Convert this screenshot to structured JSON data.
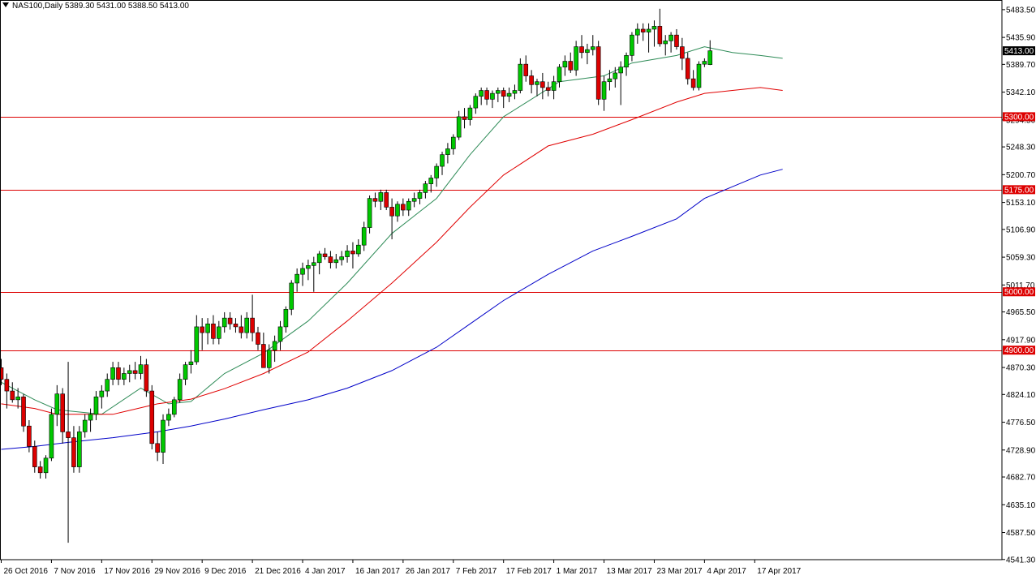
{
  "header": {
    "symbol": "NAS100,Daily",
    "ohlc": "5389.30 5431.00 5388.50 5413.00"
  },
  "colors": {
    "background": "#ffffff",
    "axis": "#000000",
    "bull_body": "#00c800",
    "bear_body": "#dc0000",
    "wick": "#000000",
    "ma_short": "#2e8b57",
    "ma_mid": "#e00000",
    "ma_long": "#0000c8",
    "horizontal_line": "#dd0000",
    "price_tag_bg": "#000000",
    "price_tag_text": "#ffffff",
    "level_tag_bg": "#dd0000"
  },
  "chart_data": {
    "type": "candlestick",
    "ylim": [
      4541.0,
      5500.0
    ],
    "y_ticks": [
      "5483.50",
      "5435.90",
      "5389.70",
      "5342.10",
      "5294.50",
      "5248.30",
      "5200.70",
      "5153.10",
      "5106.90",
      "5059.30",
      "5011.70",
      "4965.50",
      "4917.90",
      "4870.30",
      "4824.10",
      "4776.50",
      "4728.90",
      "4682.70",
      "4635.10",
      "4587.50",
      "4541.30"
    ],
    "x_ticks": [
      {
        "index": 0,
        "label": "26 Oct 2016"
      },
      {
        "index": 9,
        "label": "7 Nov 2016"
      },
      {
        "index": 18,
        "label": "17 Nov 2016"
      },
      {
        "index": 27,
        "label": "29 Nov 2016"
      },
      {
        "index": 36,
        "label": "9 Dec 2016"
      },
      {
        "index": 45,
        "label": "21 Dec 2016"
      },
      {
        "index": 54,
        "label": "4 Jan 2017"
      },
      {
        "index": 63,
        "label": "16 Jan 2017"
      },
      {
        "index": 72,
        "label": "26 Jan 2017"
      },
      {
        "index": 81,
        "label": "7 Feb 2017"
      },
      {
        "index": 90,
        "label": "17 Feb 2017"
      },
      {
        "index": 99,
        "label": "1 Mar 2017"
      },
      {
        "index": 108,
        "label": "13 Mar 2017"
      },
      {
        "index": 117,
        "label": "23 Mar 2017"
      },
      {
        "index": 126,
        "label": "4 Apr 2017"
      },
      {
        "index": 135,
        "label": "17 Apr 2017"
      }
    ],
    "current_price": {
      "value": 5413.0,
      "label": "5413.00"
    },
    "horizontal_lines": [
      {
        "value": 5300.0,
        "label": "5300.00"
      },
      {
        "value": 5175.0,
        "label": "5175.00"
      },
      {
        "value": 5000.0,
        "label": "5000.00"
      },
      {
        "value": 4900.0,
        "label": "4900.00"
      }
    ],
    "candles": [
      [
        4870,
        4885,
        4840,
        4850
      ],
      [
        4850,
        4860,
        4800,
        4830
      ],
      [
        4830,
        4845,
        4810,
        4815
      ],
      [
        4815,
        4835,
        4800,
        4820
      ],
      [
        4820,
        4825,
        4760,
        4770
      ],
      [
        4770,
        4780,
        4725,
        4735
      ],
      [
        4735,
        4745,
        4690,
        4700
      ],
      [
        4700,
        4710,
        4680,
        4690
      ],
      [
        4690,
        4720,
        4680,
        4715
      ],
      [
        4715,
        4800,
        4710,
        4790
      ],
      [
        4790,
        4840,
        4770,
        4825
      ],
      [
        4825,
        4835,
        4740,
        4760
      ],
      [
        4760,
        4880,
        4570,
        4750
      ],
      [
        4750,
        4770,
        4690,
        4700
      ],
      [
        4700,
        4770,
        4690,
        4760
      ],
      [
        4760,
        4790,
        4750,
        4780
      ],
      [
        4780,
        4800,
        4760,
        4790
      ],
      [
        4790,
        4830,
        4780,
        4820
      ],
      [
        4820,
        4840,
        4800,
        4830
      ],
      [
        4830,
        4860,
        4820,
        4850
      ],
      [
        4850,
        4880,
        4840,
        4870
      ],
      [
        4870,
        4880,
        4840,
        4850
      ],
      [
        4850,
        4870,
        4840,
        4860
      ],
      [
        4860,
        4875,
        4845,
        4865
      ],
      [
        4865,
        4880,
        4850,
        4860
      ],
      [
        4860,
        4890,
        4850,
        4875
      ],
      [
        4875,
        4885,
        4820,
        4830
      ],
      [
        4830,
        4840,
        4730,
        4740
      ],
      [
        4740,
        4760,
        4710,
        4725
      ],
      [
        4725,
        4790,
        4705,
        4780
      ],
      [
        4780,
        4800,
        4770,
        4790
      ],
      [
        4790,
        4820,
        4785,
        4815
      ],
      [
        4815,
        4860,
        4810,
        4850
      ],
      [
        4850,
        4880,
        4840,
        4875
      ],
      [
        4875,
        4900,
        4860,
        4880
      ],
      [
        4880,
        4960,
        4875,
        4940
      ],
      [
        4940,
        4955,
        4900,
        4930
      ],
      [
        4930,
        4955,
        4910,
        4945
      ],
      [
        4945,
        4960,
        4910,
        4920
      ],
      [
        4920,
        4950,
        4910,
        4940
      ],
      [
        4940,
        4965,
        4930,
        4955
      ],
      [
        4955,
        4965,
        4935,
        4945
      ],
      [
        4945,
        4955,
        4930,
        4940
      ],
      [
        4940,
        4960,
        4920,
        4930
      ],
      [
        4930,
        4965,
        4920,
        4955
      ],
      [
        4955,
        4995,
        4915,
        4930
      ],
      [
        4930,
        4940,
        4900,
        4910
      ],
      [
        4910,
        4930,
        4870,
        4870
      ],
      [
        4870,
        4910,
        4860,
        4900
      ],
      [
        4900,
        4925,
        4880,
        4915
      ],
      [
        4915,
        4950,
        4900,
        4940
      ],
      [
        4940,
        4975,
        4930,
        4970
      ],
      [
        4970,
        5020,
        4960,
        5015
      ],
      [
        5015,
        5040,
        5000,
        5030
      ],
      [
        5030,
        5050,
        5010,
        5040
      ],
      [
        5040,
        5055,
        5020,
        5045
      ],
      [
        5045,
        5060,
        5000,
        5050
      ],
      [
        5050,
        5070,
        5030,
        5065
      ],
      [
        5065,
        5075,
        5055,
        5060
      ],
      [
        5060,
        5070,
        5040,
        5050
      ],
      [
        5050,
        5065,
        5040,
        5055
      ],
      [
        5055,
        5070,
        5045,
        5060
      ],
      [
        5060,
        5080,
        5050,
        5070
      ],
      [
        5070,
        5085,
        5040,
        5065
      ],
      [
        5065,
        5090,
        5060,
        5080
      ],
      [
        5080,
        5120,
        5070,
        5110
      ],
      [
        5110,
        5165,
        5100,
        5160
      ],
      [
        5160,
        5170,
        5145,
        5155
      ],
      [
        5155,
        5175,
        5140,
        5170
      ],
      [
        5170,
        5175,
        5140,
        5145
      ],
      [
        5145,
        5160,
        5090,
        5130
      ],
      [
        5130,
        5155,
        5120,
        5150
      ],
      [
        5150,
        5160,
        5130,
        5140
      ],
      [
        5140,
        5160,
        5130,
        5155
      ],
      [
        5155,
        5170,
        5145,
        5160
      ],
      [
        5160,
        5175,
        5150,
        5170
      ],
      [
        5170,
        5190,
        5160,
        5185
      ],
      [
        5185,
        5200,
        5170,
        5195
      ],
      [
        5195,
        5220,
        5180,
        5215
      ],
      [
        5215,
        5240,
        5200,
        5235
      ],
      [
        5235,
        5255,
        5220,
        5245
      ],
      [
        5245,
        5270,
        5235,
        5265
      ],
      [
        5265,
        5310,
        5260,
        5300
      ],
      [
        5300,
        5315,
        5280,
        5295
      ],
      [
        5295,
        5320,
        5285,
        5315
      ],
      [
        5315,
        5340,
        5305,
        5335
      ],
      [
        5335,
        5350,
        5320,
        5345
      ],
      [
        5345,
        5350,
        5320,
        5330
      ],
      [
        5330,
        5345,
        5315,
        5340
      ],
      [
        5340,
        5350,
        5325,
        5345
      ],
      [
        5345,
        5350,
        5315,
        5335
      ],
      [
        5335,
        5350,
        5325,
        5340
      ],
      [
        5340,
        5355,
        5330,
        5345
      ],
      [
        5345,
        5400,
        5340,
        5390
      ],
      [
        5390,
        5405,
        5360,
        5370
      ],
      [
        5370,
        5380,
        5340,
        5355
      ],
      [
        5355,
        5365,
        5335,
        5360
      ],
      [
        5360,
        5375,
        5330,
        5350
      ],
      [
        5350,
        5360,
        5335,
        5345
      ],
      [
        5345,
        5370,
        5330,
        5360
      ],
      [
        5360,
        5390,
        5350,
        5385
      ],
      [
        5385,
        5405,
        5370,
        5395
      ],
      [
        5395,
        5410,
        5375,
        5380
      ],
      [
        5380,
        5430,
        5370,
        5420
      ],
      [
        5420,
        5440,
        5400,
        5410
      ],
      [
        5410,
        5425,
        5390,
        5415
      ],
      [
        5415,
        5440,
        5405,
        5420
      ],
      [
        5420,
        5430,
        5320,
        5330
      ],
      [
        5330,
        5370,
        5310,
        5360
      ],
      [
        5360,
        5380,
        5345,
        5365
      ],
      [
        5365,
        5385,
        5350,
        5375
      ],
      [
        5375,
        5395,
        5320,
        5385
      ],
      [
        5385,
        5410,
        5370,
        5405
      ],
      [
        5405,
        5445,
        5395,
        5440
      ],
      [
        5440,
        5460,
        5425,
        5450
      ],
      [
        5450,
        5460,
        5430,
        5445
      ],
      [
        5445,
        5460,
        5410,
        5450
      ],
      [
        5450,
        5465,
        5420,
        5455
      ],
      [
        5455,
        5485,
        5420,
        5425
      ],
      [
        5425,
        5440,
        5405,
        5430
      ],
      [
        5430,
        5445,
        5410,
        5440
      ],
      [
        5440,
        5450,
        5415,
        5420
      ],
      [
        5420,
        5435,
        5380,
        5400
      ],
      [
        5400,
        5410,
        5355,
        5365
      ],
      [
        5365,
        5380,
        5345,
        5350
      ],
      [
        5350,
        5395,
        5345,
        5390
      ],
      [
        5390,
        5400,
        5385,
        5395
      ],
      [
        5389.3,
        5431,
        5388.5,
        5413
      ]
    ],
    "series": [
      {
        "name": "MA short",
        "color_key": "ma_short",
        "points": [
          [
            0,
            4845
          ],
          [
            6,
            4815
          ],
          [
            10,
            4798
          ],
          [
            18,
            4790
          ],
          [
            25,
            4835
          ],
          [
            30,
            4808
          ],
          [
            34,
            4812
          ],
          [
            40,
            4860
          ],
          [
            47,
            4895
          ],
          [
            55,
            4950
          ],
          [
            62,
            5015
          ],
          [
            70,
            5100
          ],
          [
            78,
            5160
          ],
          [
            84,
            5235
          ],
          [
            90,
            5300
          ],
          [
            100,
            5360
          ],
          [
            108,
            5370
          ],
          [
            113,
            5392
          ],
          [
            121,
            5405
          ],
          [
            126,
            5420
          ],
          [
            131,
            5410
          ],
          [
            136,
            5405
          ],
          [
            140,
            5400
          ]
        ]
      },
      {
        "name": "MA mid",
        "color_key": "ma_mid",
        "points": [
          [
            0,
            4808
          ],
          [
            6,
            4800
          ],
          [
            10,
            4790
          ],
          [
            20,
            4790
          ],
          [
            28,
            4808
          ],
          [
            34,
            4816
          ],
          [
            40,
            4834
          ],
          [
            47,
            4860
          ],
          [
            55,
            4897
          ],
          [
            62,
            4950
          ],
          [
            70,
            5015
          ],
          [
            78,
            5085
          ],
          [
            84,
            5145
          ],
          [
            90,
            5200
          ],
          [
            98,
            5250
          ],
          [
            106,
            5270
          ],
          [
            113,
            5295
          ],
          [
            121,
            5325
          ],
          [
            126,
            5340
          ],
          [
            131,
            5345
          ],
          [
            136,
            5350
          ],
          [
            140,
            5345
          ]
        ]
      },
      {
        "name": "MA long",
        "color_key": "ma_long",
        "points": [
          [
            0,
            4730
          ],
          [
            6,
            4735
          ],
          [
            12,
            4742
          ],
          [
            20,
            4750
          ],
          [
            28,
            4760
          ],
          [
            34,
            4770
          ],
          [
            40,
            4782
          ],
          [
            47,
            4798
          ],
          [
            55,
            4815
          ],
          [
            62,
            4835
          ],
          [
            70,
            4865
          ],
          [
            78,
            4905
          ],
          [
            84,
            4945
          ],
          [
            90,
            4985
          ],
          [
            98,
            5030
          ],
          [
            106,
            5070
          ],
          [
            113,
            5095
          ],
          [
            121,
            5125
          ],
          [
            126,
            5160
          ],
          [
            131,
            5180
          ],
          [
            136,
            5200
          ],
          [
            140,
            5210
          ]
        ]
      }
    ]
  }
}
